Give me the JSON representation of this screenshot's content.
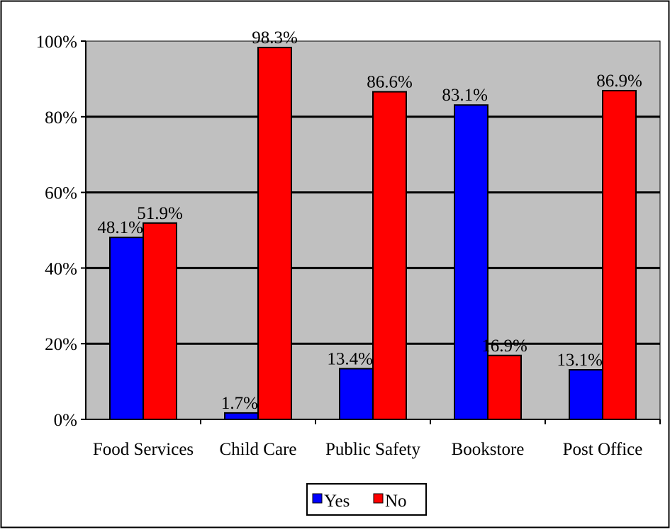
{
  "chart_data": {
    "type": "bar",
    "categories": [
      "Food Services",
      "Child Care",
      "Public Safety",
      "Bookstore",
      "Post Office"
    ],
    "series": [
      {
        "name": "Yes",
        "values": [
          48.1,
          1.7,
          13.4,
          83.1,
          13.1
        ],
        "color": "#0000FF",
        "labels": [
          "48.1%",
          "1.7%",
          "13.4%",
          "83.1%",
          "13.1%"
        ]
      },
      {
        "name": "No",
        "values": [
          51.9,
          98.3,
          86.6,
          16.9,
          86.9
        ],
        "color": "#FF0000",
        "labels": [
          "51.9%",
          "98.3%",
          "86.6%",
          "16.9%",
          "86.9%"
        ]
      }
    ],
    "ylim": [
      0,
      100
    ],
    "yticks": [
      "0%",
      "20%",
      "40%",
      "60%",
      "80%",
      "100%"
    ],
    "grid": true,
    "plot_background": "#C0C0C0",
    "legend": {
      "position": "bottom-center",
      "entries": [
        "Yes",
        "No"
      ]
    }
  }
}
